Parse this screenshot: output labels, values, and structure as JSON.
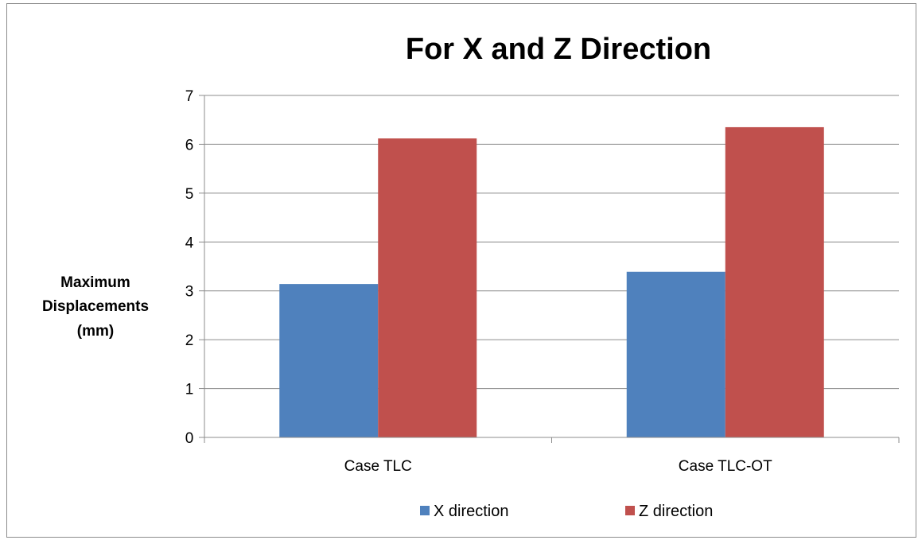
{
  "chart_data": {
    "type": "bar",
    "title": "For X and Z Direction",
    "ylabel": [
      "Maximum",
      "Displacements",
      "(mm)"
    ],
    "xlabel": "",
    "categories": [
      "Case TLC",
      "Case TLC-OT"
    ],
    "series": [
      {
        "name": "X direction",
        "values": [
          3.14,
          3.39
        ],
        "color": "#4f81bd"
      },
      {
        "name": "Z direction",
        "values": [
          6.12,
          6.35
        ],
        "color": "#c0504d"
      }
    ],
    "ylim": [
      0,
      7
    ],
    "yticks": [
      "0",
      "1",
      "2",
      "3",
      "4",
      "5",
      "6",
      "7"
    ],
    "grid": true,
    "legend": "bottom"
  }
}
